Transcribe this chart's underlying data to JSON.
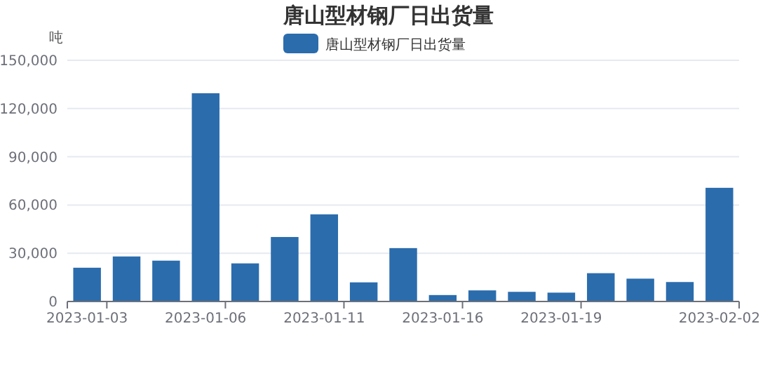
{
  "chart_data": {
    "type": "bar",
    "title": "唐山型材钢厂日出货量",
    "ylabel": "吨",
    "categories": [
      "2023-01-03",
      null,
      null,
      "2023-01-06",
      null,
      null,
      "2023-01-11",
      null,
      null,
      "2023-01-16",
      null,
      null,
      "2023-01-19",
      null,
      null,
      null,
      "2023-02-02"
    ],
    "series": [
      {
        "name": "唐山型材钢厂日出货量",
        "color": "#2b6cad",
        "values": [
          21000,
          28000,
          25400,
          129500,
          23700,
          40100,
          54200,
          11900,
          33200,
          4000,
          6900,
          6000,
          5500,
          17600,
          14200,
          12100,
          70700
        ]
      }
    ],
    "ylim": [
      0,
      150000
    ],
    "yticks": [
      {
        "value": 0,
        "label": "0"
      },
      {
        "value": 30000,
        "label": "30,000"
      },
      {
        "value": 60000,
        "label": "60,000"
      },
      {
        "value": 90000,
        "label": "90,000"
      },
      {
        "value": 120000,
        "label": "120,000"
      },
      {
        "value": 150000,
        "label": "150,000"
      }
    ],
    "grid": "y",
    "legend": "top"
  }
}
